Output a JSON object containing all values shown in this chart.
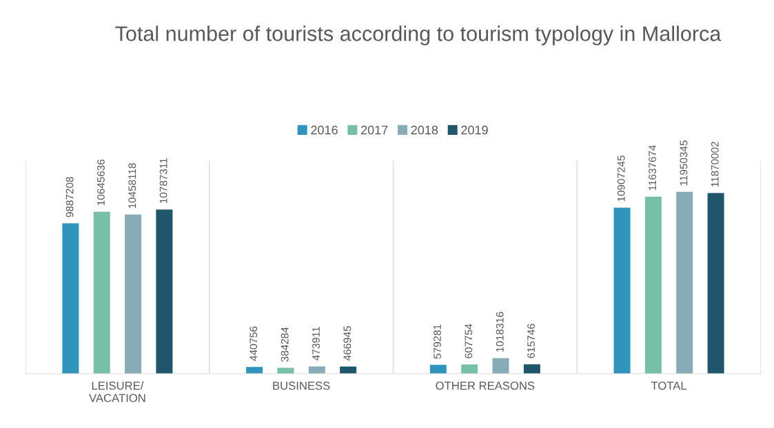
{
  "chart_data": {
    "type": "bar",
    "title": "Total number of tourists according to tourism typology in Mallorca",
    "categories": [
      "LEISURE/ VACATION",
      "BUSINESS",
      "OTHER REASONS",
      "TOTAL"
    ],
    "series": [
      {
        "name": "2016",
        "color": "#3194bc",
        "values": [
          9887208,
          440756,
          579281,
          10907245
        ]
      },
      {
        "name": "2017",
        "color": "#77bfa8",
        "values": [
          10645636,
          384284,
          607754,
          11637674
        ]
      },
      {
        "name": "2018",
        "color": "#87acb8",
        "values": [
          10458118,
          473911,
          1018316,
          11950345
        ]
      },
      {
        "name": "2019",
        "color": "#1f566c",
        "values": [
          10787311,
          466945,
          615746,
          11870002
        ]
      }
    ],
    "data_labels": true,
    "legend": "top",
    "grid": "x"
  }
}
